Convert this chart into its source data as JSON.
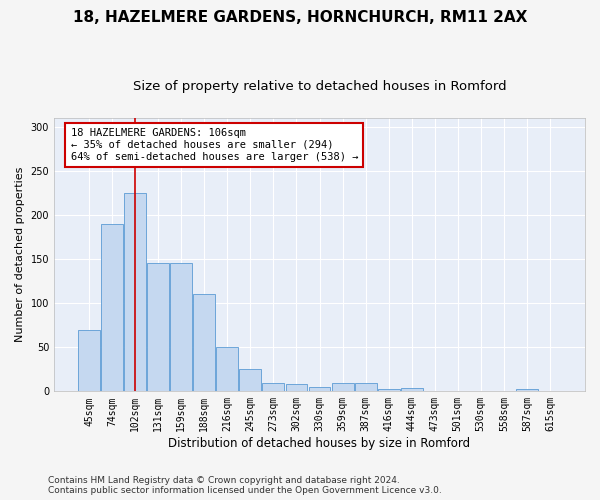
{
  "title": "18, HAZELMERE GARDENS, HORNCHURCH, RM11 2AX",
  "subtitle": "Size of property relative to detached houses in Romford",
  "xlabel": "Distribution of detached houses by size in Romford",
  "ylabel": "Number of detached properties",
  "categories": [
    "45sqm",
    "74sqm",
    "102sqm",
    "131sqm",
    "159sqm",
    "188sqm",
    "216sqm",
    "245sqm",
    "273sqm",
    "302sqm",
    "330sqm",
    "359sqm",
    "387sqm",
    "416sqm",
    "444sqm",
    "473sqm",
    "501sqm",
    "530sqm",
    "558sqm",
    "587sqm",
    "615sqm"
  ],
  "values": [
    70,
    190,
    225,
    145,
    145,
    110,
    50,
    25,
    10,
    8,
    5,
    10,
    9,
    3,
    4,
    0,
    0,
    0,
    0,
    3,
    0
  ],
  "bar_color": "#c5d8f0",
  "bar_edge_color": "#5b9bd5",
  "vline_x": 2,
  "vline_color": "#cc0000",
  "annotation_text": "18 HAZELMERE GARDENS: 106sqm\n← 35% of detached houses are smaller (294)\n64% of semi-detached houses are larger (538) →",
  "annotation_box_facecolor": "#ffffff",
  "annotation_box_edgecolor": "#cc0000",
  "ylim": [
    0,
    310
  ],
  "yticks": [
    0,
    50,
    100,
    150,
    200,
    250,
    300
  ],
  "plot_bg_color": "#e8eef8",
  "fig_bg_color": "#f5f5f5",
  "grid_color": "#ffffff",
  "footer_line1": "Contains HM Land Registry data © Crown copyright and database right 2024.",
  "footer_line2": "Contains public sector information licensed under the Open Government Licence v3.0.",
  "title_fontsize": 11,
  "subtitle_fontsize": 9.5,
  "xlabel_fontsize": 8.5,
  "ylabel_fontsize": 8,
  "tick_fontsize": 7,
  "annot_fontsize": 7.5,
  "footer_fontsize": 6.5
}
